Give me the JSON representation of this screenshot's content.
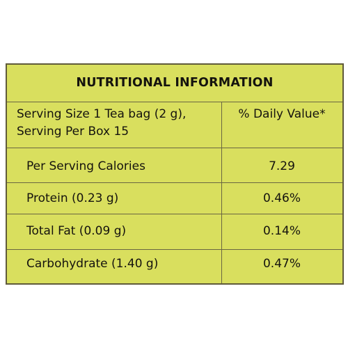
{
  "colors": {
    "panel_bg": "#d9df5e",
    "border": "#5f5a3a",
    "text": "#15130e"
  },
  "table": {
    "title": "NUTRITIONAL INFORMATION",
    "header": {
      "serving_line1": "Serving Size 1 Tea bag (2 g),",
      "serving_line2": "Serving Per Box 15",
      "daily_value": "% Daily Value*"
    },
    "rows": [
      {
        "label": "Per Serving Calories",
        "value": "7.29"
      },
      {
        "label": "Protein (0.23 g)",
        "value": "0.46%"
      },
      {
        "label": "Total Fat (0.09 g)",
        "value": "0.14%"
      },
      {
        "label": "Carbohydrate (1.40 g)",
        "value": "0.47%"
      }
    ]
  }
}
